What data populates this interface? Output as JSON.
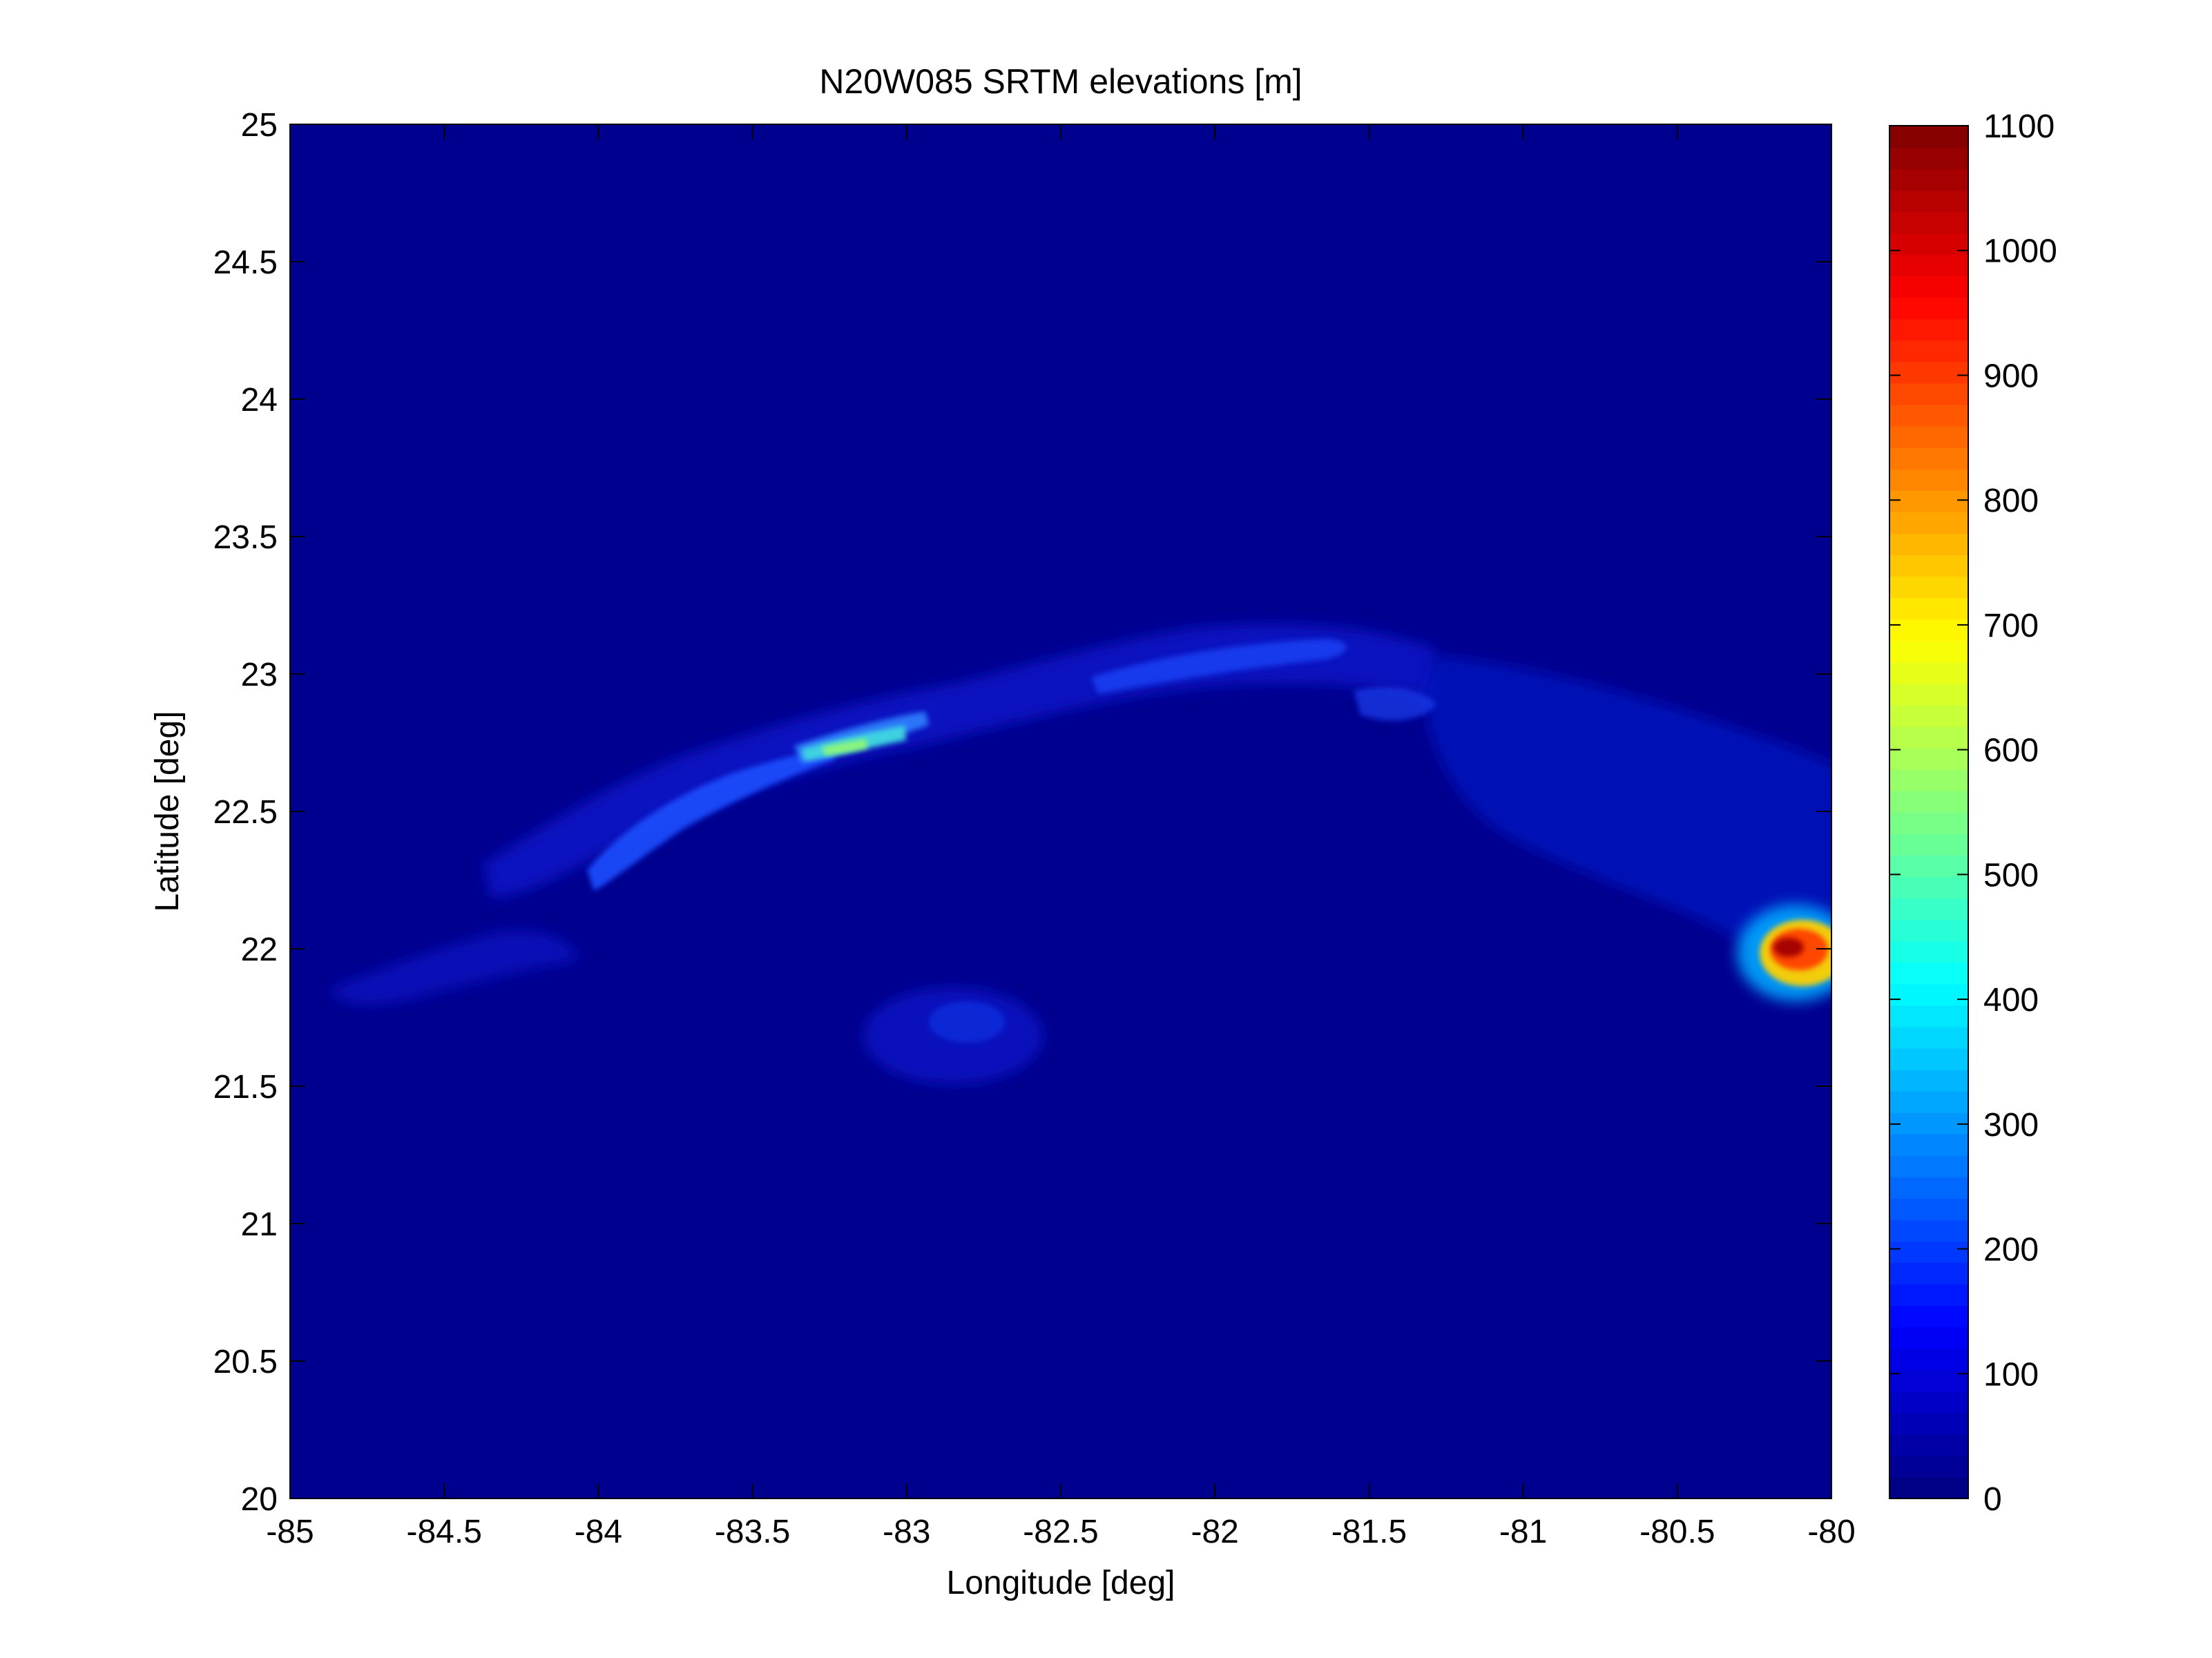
{
  "chart_data": {
    "type": "heatmap",
    "title": "N20W085 SRTM elevations [m]",
    "xlabel": "Longitude [deg]",
    "ylabel": "Latitude [deg]",
    "xlim": [
      -85,
      -80
    ],
    "ylim": [
      20,
      25
    ],
    "x_ticks": [
      -85,
      -84.5,
      -84,
      -83.5,
      -83,
      -82.5,
      -82,
      -81.5,
      -81,
      -80.5,
      -80
    ],
    "x_tick_labels": [
      "-85",
      "-84.5",
      "-84",
      "-83.5",
      "-83",
      "-82.5",
      "-82",
      "-81.5",
      "-81",
      "-80.5",
      "-80"
    ],
    "y_ticks": [
      20,
      20.5,
      21,
      21.5,
      22,
      22.5,
      23,
      23.5,
      24,
      24.5,
      25
    ],
    "y_tick_labels": [
      "20",
      "20.5",
      "21",
      "21.5",
      "22",
      "22.5",
      "23",
      "23.5",
      "24",
      "24.5",
      "25"
    ],
    "colorbar": {
      "colormap": "jet",
      "range": [
        0,
        1100
      ],
      "ticks": [
        0,
        100,
        200,
        300,
        400,
        500,
        600,
        700,
        800,
        900,
        1000,
        1100
      ],
      "tick_labels": [
        "0",
        "100",
        "200",
        "300",
        "400",
        "500",
        "600",
        "700",
        "800",
        "900",
        "1000",
        "1100"
      ]
    },
    "background_value": 0,
    "grid": false
  }
}
